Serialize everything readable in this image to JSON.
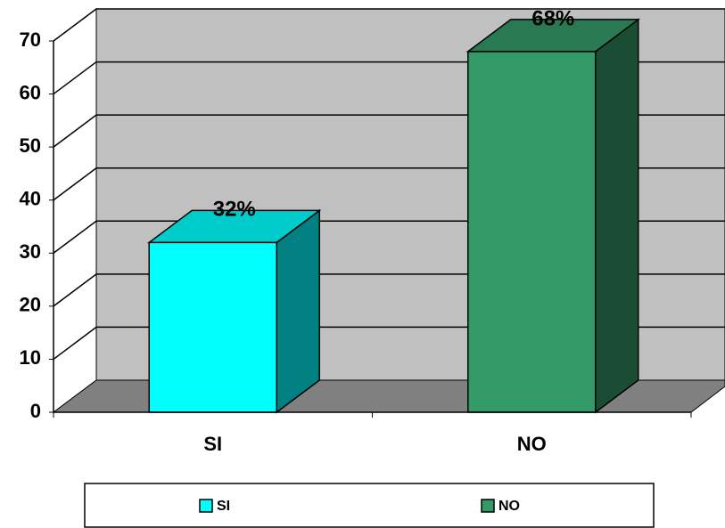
{
  "chart_data": {
    "type": "bar3d",
    "categories": [
      "SI",
      "NO"
    ],
    "values": [
      32,
      68
    ],
    "value_labels": [
      "32%",
      "68%"
    ],
    "colors": [
      "#00FFFF",
      "#339966"
    ],
    "ylim": [
      0,
      70
    ],
    "yticks": [
      0,
      10,
      20,
      30,
      40,
      50,
      60,
      70
    ],
    "grid": true,
    "legend": "bottom"
  }
}
